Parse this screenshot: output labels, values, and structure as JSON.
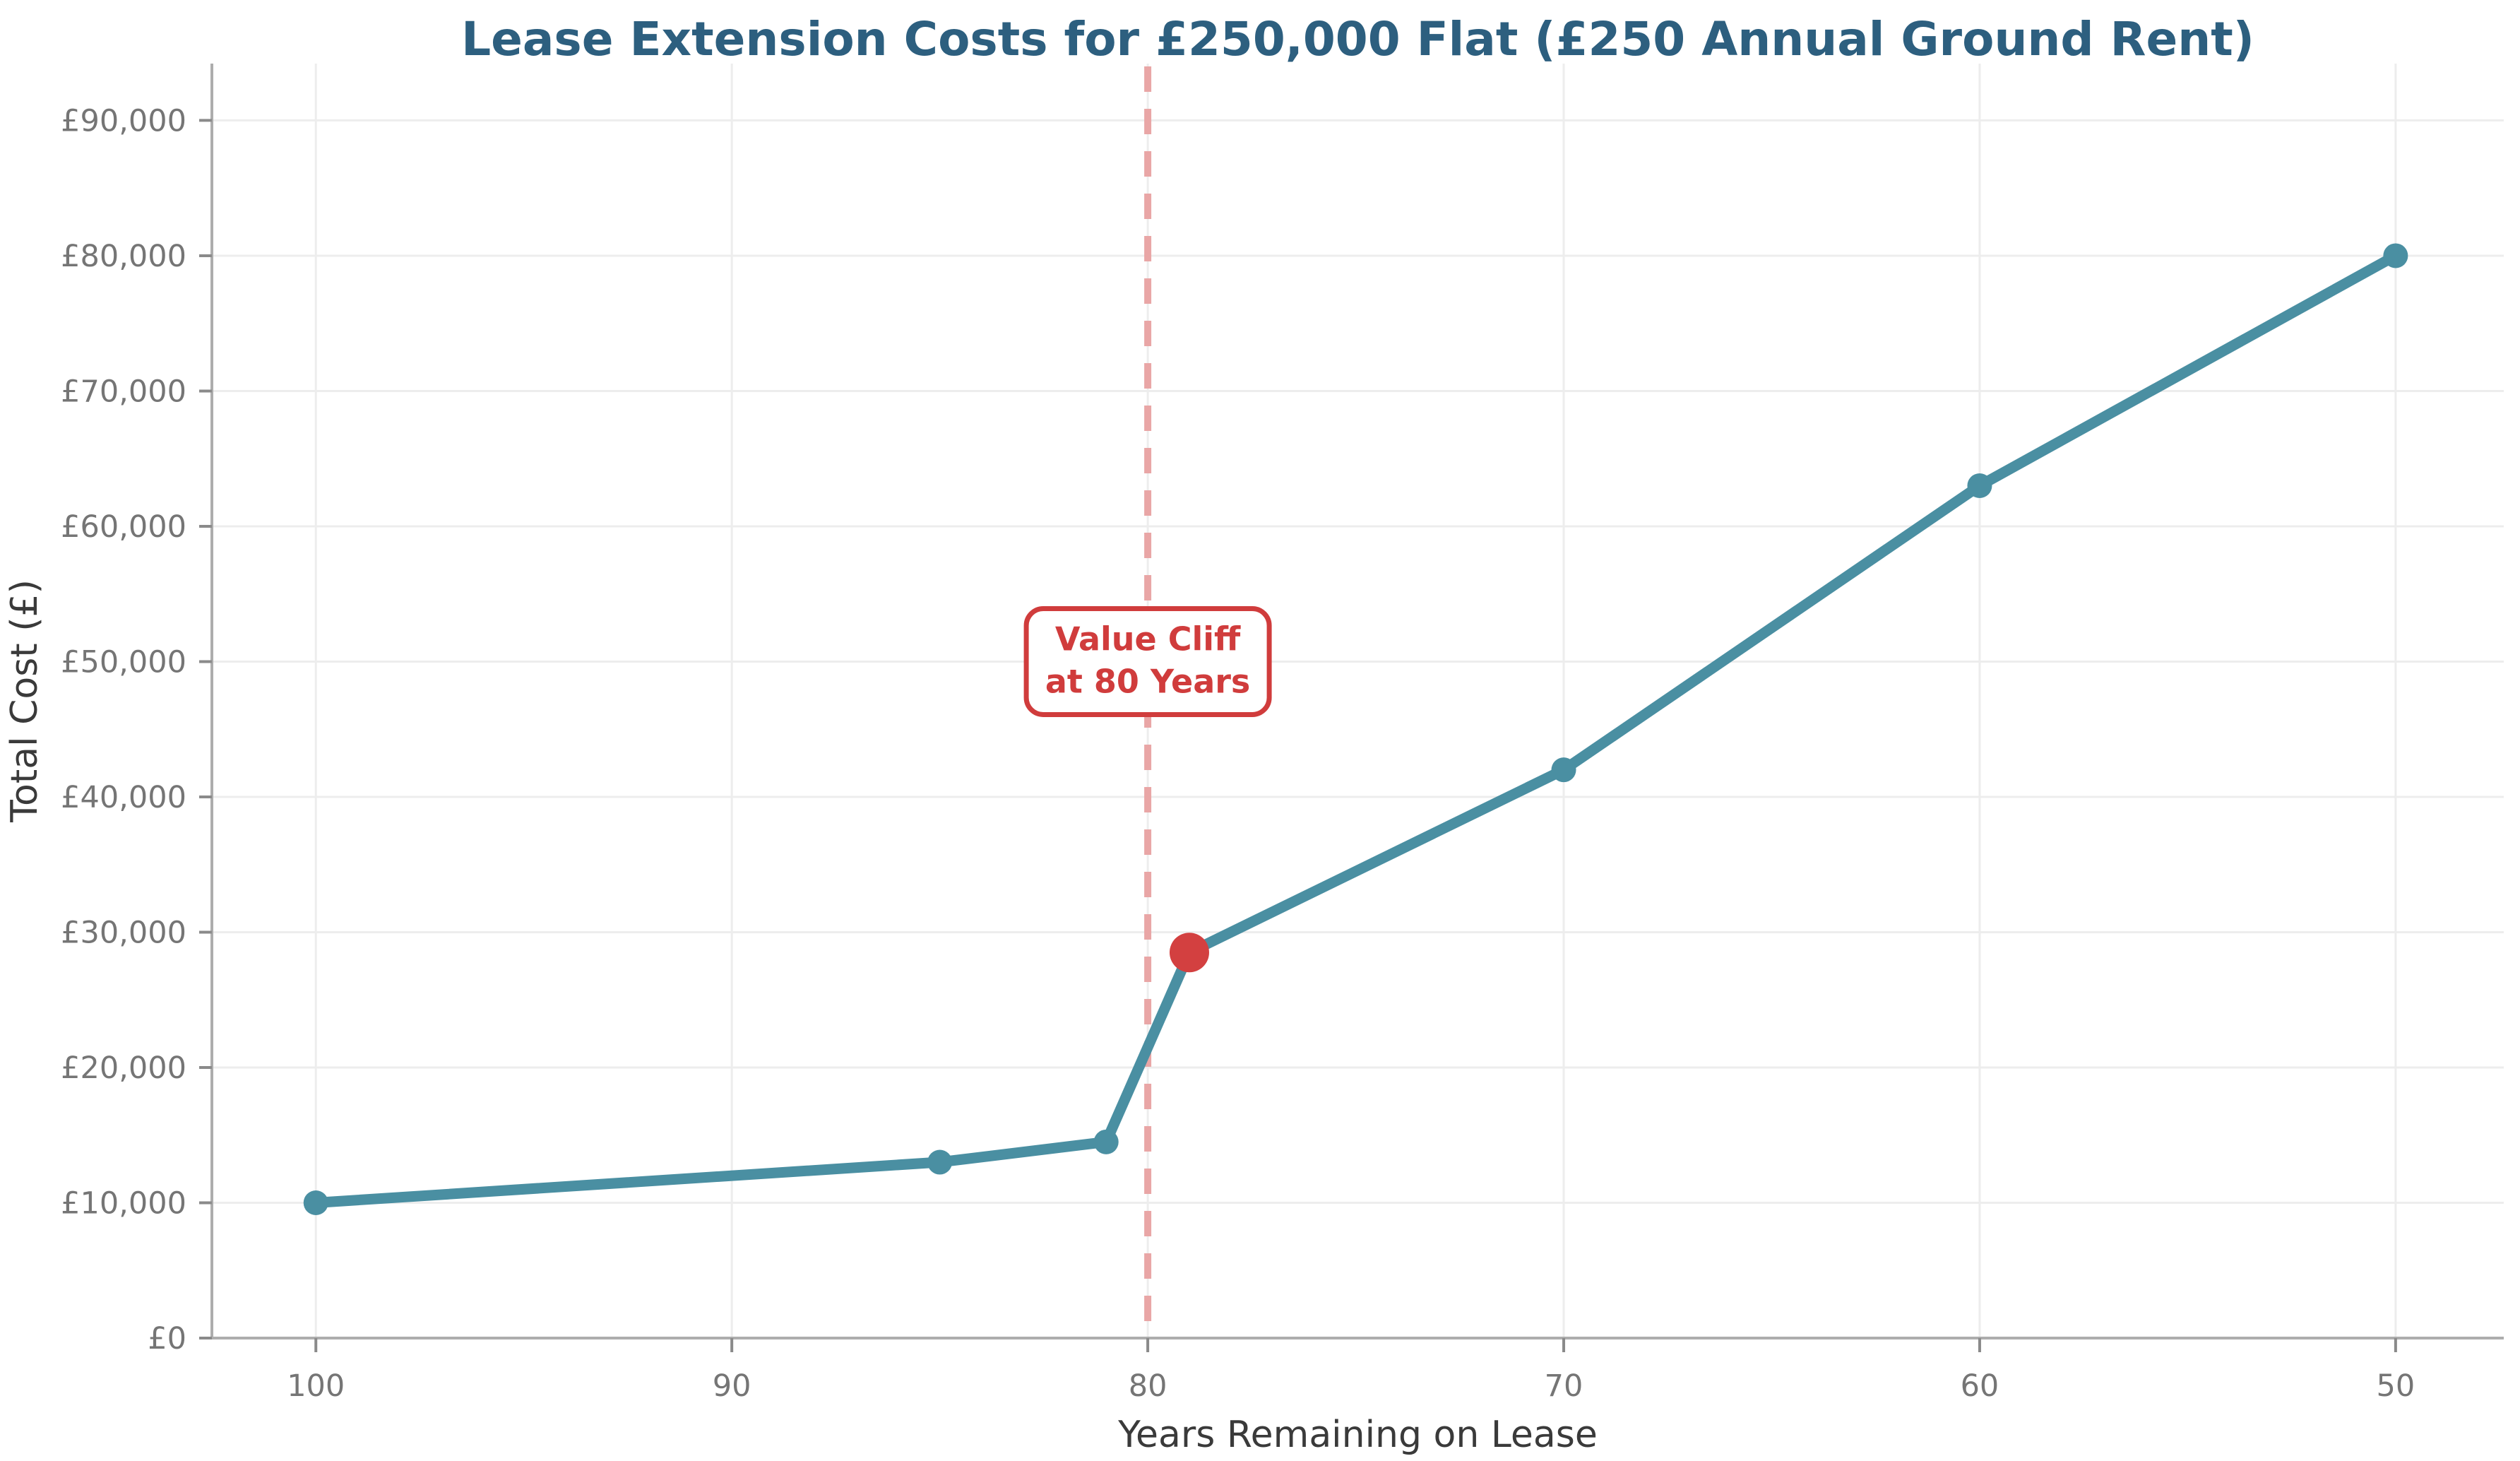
{
  "chart_data": {
    "type": "line",
    "title": "Lease Extension Costs for £250,000 Flat (£250 Annual Ground Rent)",
    "xlabel": "Years Remaining on Lease",
    "ylabel": "Total Cost (£)",
    "x": [
      100,
      85,
      81,
      79,
      70,
      60,
      50
    ],
    "series": [
      {
        "name": "lease-extension-total-cost",
        "values": [
          10000,
          13000,
          14500,
          28500,
          42000,
          63000,
          80000
        ]
      }
    ],
    "highlight_point": {
      "x": 79,
      "y": 28500
    },
    "vline": {
      "x": 80,
      "style": "dashed"
    },
    "annotation": {
      "line1": "Value Cliff",
      "line2": "at 80 Years",
      "x": 80,
      "y": 50000
    },
    "x_ticks": [
      100,
      90,
      80,
      70,
      60,
      50
    ],
    "x_tick_labels": [
      "100",
      "90",
      "80",
      "70",
      "60",
      "50"
    ],
    "y_ticks": [
      0,
      10000,
      20000,
      30000,
      40000,
      50000,
      60000,
      70000,
      80000,
      90000
    ],
    "y_tick_labels": [
      "£0",
      "£10,000",
      "£20,000",
      "£30,000",
      "£40,000",
      "£50,000",
      "£60,000",
      "£70,000",
      "£80,000",
      "£90,000"
    ],
    "x_axis_reversed": true,
    "xlim": [
      102.5,
      47.4
    ],
    "ylim": [
      0,
      94200
    ],
    "grid": true,
    "legend_position": "none"
  },
  "colors": {
    "background": "#ffffff",
    "title": "#2d5f7f",
    "line": "#4a8fa2",
    "marker": "#4a8fa2",
    "highlight_marker": "#d34040",
    "vline": "#e9a6a6",
    "annotation": "#d03c3c",
    "annotation_fill": "#ffffff",
    "grid": "#ededed",
    "spine": "#adadad",
    "tick": "#8a8a8a",
    "tick_label": "#757575",
    "axis_label": "#3a3a3a"
  }
}
